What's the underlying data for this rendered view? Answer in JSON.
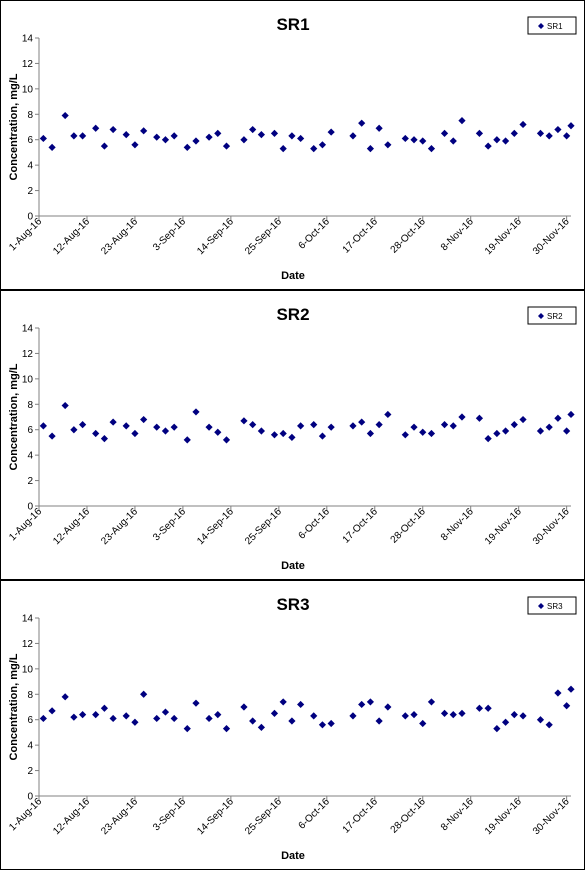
{
  "colors": {
    "marker": "#000080",
    "axis": "#808080",
    "frame": "#000000"
  },
  "chart_data": [
    {
      "type": "scatter",
      "title": "SR1",
      "xlabel": "Date",
      "ylabel": "Concentration, mg/L",
      "ylim": [
        0,
        14
      ],
      "y_ticks": [
        "0",
        "2",
        "4",
        "6",
        "8",
        "10",
        "12",
        "14"
      ],
      "x_range": [
        "2016-08-01",
        "2016-12-01"
      ],
      "x_tick_labels": [
        "1-Aug-16",
        "12-Aug-16",
        "23-Aug-16",
        "3-Sep-16",
        "14-Sep-16",
        "25-Sep-16",
        "6-Oct-16",
        "17-Oct-16",
        "28-Oct-16",
        "8-Nov-16",
        "19-Nov-16",
        "30-Nov-16"
      ],
      "grid": false,
      "legend_position": "top-right",
      "series": [
        {
          "name": "SR1",
          "marker": "diamond",
          "color": "#000080",
          "points": [
            [
              "2016-08-02",
              6.1
            ],
            [
              "2016-08-04",
              5.4
            ],
            [
              "2016-08-07",
              7.9
            ],
            [
              "2016-08-09",
              6.3
            ],
            [
              "2016-08-11",
              6.3
            ],
            [
              "2016-08-14",
              6.9
            ],
            [
              "2016-08-16",
              5.5
            ],
            [
              "2016-08-18",
              6.8
            ],
            [
              "2016-08-21",
              6.4
            ],
            [
              "2016-08-23",
              5.6
            ],
            [
              "2016-08-25",
              6.7
            ],
            [
              "2016-08-28",
              6.2
            ],
            [
              "2016-08-30",
              6.0
            ],
            [
              "2016-09-01",
              6.3
            ],
            [
              "2016-09-04",
              5.4
            ],
            [
              "2016-09-06",
              5.9
            ],
            [
              "2016-09-09",
              6.2
            ],
            [
              "2016-09-11",
              6.5
            ],
            [
              "2016-09-13",
              5.5
            ],
            [
              "2016-09-17",
              6.0
            ],
            [
              "2016-09-19",
              6.8
            ],
            [
              "2016-09-21",
              6.4
            ],
            [
              "2016-09-24",
              6.5
            ],
            [
              "2016-09-26",
              5.3
            ],
            [
              "2016-09-28",
              6.3
            ],
            [
              "2016-09-30",
              6.1
            ],
            [
              "2016-10-03",
              5.3
            ],
            [
              "2016-10-05",
              5.6
            ],
            [
              "2016-10-07",
              6.6
            ],
            [
              "2016-10-12",
              6.3
            ],
            [
              "2016-10-14",
              7.3
            ],
            [
              "2016-10-16",
              5.3
            ],
            [
              "2016-10-18",
              6.9
            ],
            [
              "2016-10-20",
              5.6
            ],
            [
              "2016-10-24",
              6.1
            ],
            [
              "2016-10-26",
              6.0
            ],
            [
              "2016-10-28",
              5.9
            ],
            [
              "2016-10-30",
              5.3
            ],
            [
              "2016-11-02",
              6.5
            ],
            [
              "2016-11-04",
              5.9
            ],
            [
              "2016-11-06",
              7.5
            ],
            [
              "2016-11-10",
              6.5
            ],
            [
              "2016-11-12",
              5.5
            ],
            [
              "2016-11-14",
              6.0
            ],
            [
              "2016-11-16",
              5.9
            ],
            [
              "2016-11-18",
              6.5
            ],
            [
              "2016-11-20",
              7.2
            ],
            [
              "2016-11-24",
              6.5
            ],
            [
              "2016-11-26",
              6.3
            ],
            [
              "2016-11-28",
              6.8
            ],
            [
              "2016-11-30",
              6.3
            ],
            [
              "2016-12-01",
              7.1
            ]
          ]
        }
      ]
    },
    {
      "type": "scatter",
      "title": "SR2",
      "xlabel": "Date",
      "ylabel": "Concentration, mg/L",
      "ylim": [
        0,
        14
      ],
      "y_ticks": [
        "0",
        "2",
        "4",
        "6",
        "8",
        "10",
        "12",
        "14"
      ],
      "x_range": [
        "2016-08-01",
        "2016-12-01"
      ],
      "x_tick_labels": [
        "1-Aug-16",
        "12-Aug-16",
        "23-Aug-16",
        "3-Sep-16",
        "14-Sep-16",
        "25-Sep-16",
        "6-Oct-16",
        "17-Oct-16",
        "28-Oct-16",
        "8-Nov-16",
        "19-Nov-16",
        "30-Nov-16"
      ],
      "grid": false,
      "legend_position": "top-right",
      "series": [
        {
          "name": "SR2",
          "marker": "diamond",
          "color": "#000080",
          "points": [
            [
              "2016-08-02",
              6.3
            ],
            [
              "2016-08-04",
              5.5
            ],
            [
              "2016-08-07",
              7.9
            ],
            [
              "2016-08-09",
              6.0
            ],
            [
              "2016-08-11",
              6.4
            ],
            [
              "2016-08-14",
              5.7
            ],
            [
              "2016-08-16",
              5.3
            ],
            [
              "2016-08-18",
              6.6
            ],
            [
              "2016-08-21",
              6.3
            ],
            [
              "2016-08-23",
              5.7
            ],
            [
              "2016-08-25",
              6.8
            ],
            [
              "2016-08-28",
              6.2
            ],
            [
              "2016-08-30",
              5.9
            ],
            [
              "2016-09-01",
              6.2
            ],
            [
              "2016-09-04",
              5.2
            ],
            [
              "2016-09-06",
              7.4
            ],
            [
              "2016-09-09",
              6.2
            ],
            [
              "2016-09-11",
              5.8
            ],
            [
              "2016-09-13",
              5.2
            ],
            [
              "2016-09-17",
              6.7
            ],
            [
              "2016-09-19",
              6.4
            ],
            [
              "2016-09-21",
              5.9
            ],
            [
              "2016-09-24",
              5.6
            ],
            [
              "2016-09-26",
              5.7
            ],
            [
              "2016-09-28",
              5.4
            ],
            [
              "2016-09-30",
              6.3
            ],
            [
              "2016-10-03",
              6.4
            ],
            [
              "2016-10-05",
              5.5
            ],
            [
              "2016-10-07",
              6.2
            ],
            [
              "2016-10-12",
              6.3
            ],
            [
              "2016-10-14",
              6.6
            ],
            [
              "2016-10-16",
              5.7
            ],
            [
              "2016-10-18",
              6.4
            ],
            [
              "2016-10-20",
              7.2
            ],
            [
              "2016-10-24",
              5.6
            ],
            [
              "2016-10-26",
              6.2
            ],
            [
              "2016-10-28",
              5.8
            ],
            [
              "2016-10-30",
              5.7
            ],
            [
              "2016-11-02",
              6.4
            ],
            [
              "2016-11-04",
              6.3
            ],
            [
              "2016-11-06",
              7.0
            ],
            [
              "2016-11-10",
              6.9
            ],
            [
              "2016-11-12",
              5.3
            ],
            [
              "2016-11-14",
              5.7
            ],
            [
              "2016-11-16",
              5.9
            ],
            [
              "2016-11-18",
              6.4
            ],
            [
              "2016-11-20",
              6.8
            ],
            [
              "2016-11-24",
              5.9
            ],
            [
              "2016-11-26",
              6.2
            ],
            [
              "2016-11-28",
              6.9
            ],
            [
              "2016-11-30",
              5.9
            ],
            [
              "2016-12-01",
              7.2
            ]
          ]
        }
      ]
    },
    {
      "type": "scatter",
      "title": "SR3",
      "xlabel": "Date",
      "ylabel": "Concentration, mg/L",
      "ylim": [
        0,
        14
      ],
      "y_ticks": [
        "0",
        "2",
        "4",
        "6",
        "8",
        "10",
        "12",
        "14"
      ],
      "x_range": [
        "2016-08-01",
        "2016-12-01"
      ],
      "x_tick_labels": [
        "1-Aug-16",
        "12-Aug-16",
        "23-Aug-16",
        "3-Sep-16",
        "14-Sep-16",
        "25-Sep-16",
        "6-Oct-16",
        "17-Oct-16",
        "28-Oct-16",
        "8-Nov-16",
        "19-Nov-16",
        "30-Nov-16"
      ],
      "grid": false,
      "legend_position": "top-right",
      "series": [
        {
          "name": "SR3",
          "marker": "diamond",
          "color": "#000080",
          "points": [
            [
              "2016-08-02",
              6.1
            ],
            [
              "2016-08-04",
              6.7
            ],
            [
              "2016-08-07",
              7.8
            ],
            [
              "2016-08-09",
              6.2
            ],
            [
              "2016-08-11",
              6.4
            ],
            [
              "2016-08-14",
              6.4
            ],
            [
              "2016-08-16",
              6.9
            ],
            [
              "2016-08-18",
              6.1
            ],
            [
              "2016-08-21",
              6.3
            ],
            [
              "2016-08-23",
              5.8
            ],
            [
              "2016-08-25",
              8.0
            ],
            [
              "2016-08-28",
              6.1
            ],
            [
              "2016-08-30",
              6.6
            ],
            [
              "2016-09-01",
              6.1
            ],
            [
              "2016-09-04",
              5.3
            ],
            [
              "2016-09-06",
              7.3
            ],
            [
              "2016-09-09",
              6.1
            ],
            [
              "2016-09-11",
              6.4
            ],
            [
              "2016-09-13",
              5.3
            ],
            [
              "2016-09-17",
              7.0
            ],
            [
              "2016-09-19",
              5.9
            ],
            [
              "2016-09-21",
              5.4
            ],
            [
              "2016-09-24",
              6.5
            ],
            [
              "2016-09-26",
              7.4
            ],
            [
              "2016-09-28",
              5.9
            ],
            [
              "2016-09-30",
              7.2
            ],
            [
              "2016-10-03",
              6.3
            ],
            [
              "2016-10-05",
              5.6
            ],
            [
              "2016-10-07",
              5.7
            ],
            [
              "2016-10-12",
              6.3
            ],
            [
              "2016-10-14",
              7.2
            ],
            [
              "2016-10-16",
              7.4
            ],
            [
              "2016-10-18",
              5.9
            ],
            [
              "2016-10-20",
              7.0
            ],
            [
              "2016-10-24",
              6.3
            ],
            [
              "2016-10-26",
              6.4
            ],
            [
              "2016-10-28",
              5.7
            ],
            [
              "2016-10-30",
              7.4
            ],
            [
              "2016-11-02",
              6.5
            ],
            [
              "2016-11-04",
              6.4
            ],
            [
              "2016-11-06",
              6.5
            ],
            [
              "2016-11-10",
              6.9
            ],
            [
              "2016-11-12",
              6.9
            ],
            [
              "2016-11-14",
              5.3
            ],
            [
              "2016-11-16",
              5.8
            ],
            [
              "2016-11-18",
              6.4
            ],
            [
              "2016-11-20",
              6.3
            ],
            [
              "2016-11-24",
              6.0
            ],
            [
              "2016-11-26",
              5.6
            ],
            [
              "2016-11-28",
              8.1
            ],
            [
              "2016-11-30",
              7.1
            ],
            [
              "2016-12-01",
              8.4
            ]
          ]
        }
      ]
    }
  ]
}
